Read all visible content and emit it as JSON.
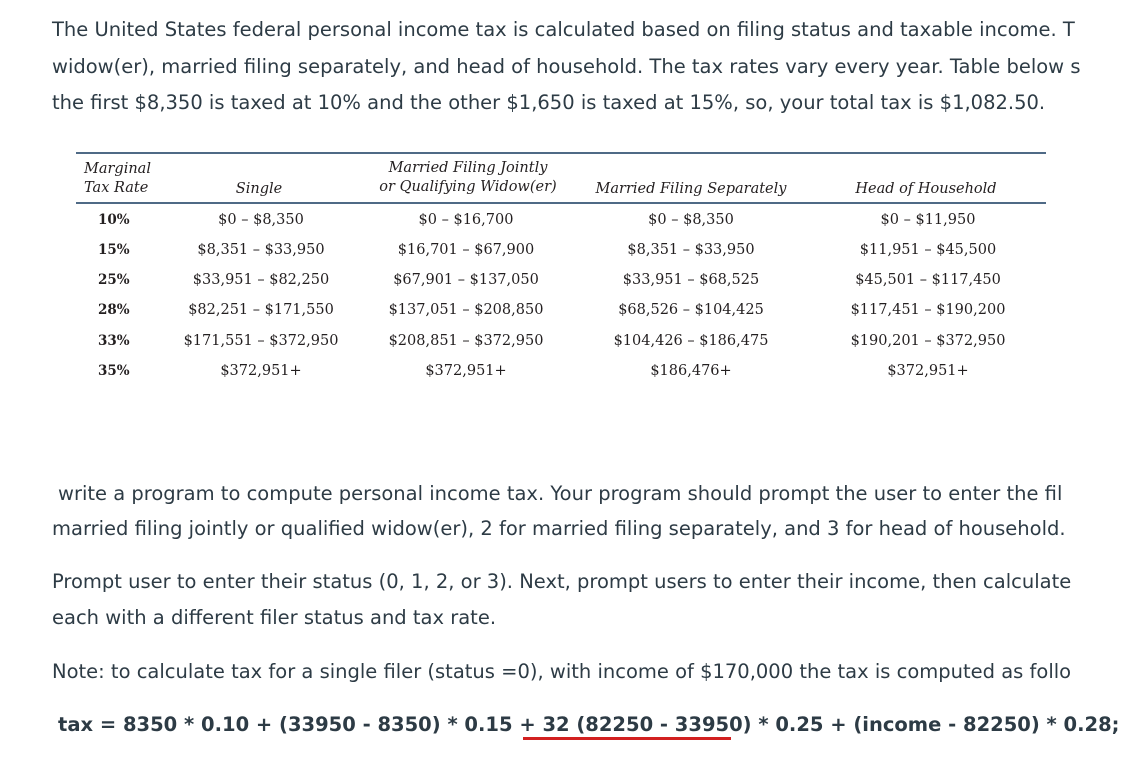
{
  "intro": {
    "line1": "The United States federal personal income tax is calculated based on filing status and taxable income. T",
    "line2": "widow(er), married filing separately, and head of household. The tax rates vary every year. Table below s",
    "line3": "the first $8,350 is taxed at 10% and the other $1,650 is taxed at 15%, so, your total tax is $1,082.50."
  },
  "table": {
    "headers": {
      "rate_line1": "Marginal",
      "rate_line2": "Tax Rate",
      "single": "Single",
      "mfj_line1": "Married Filing Jointly",
      "mfj_line2": "or Qualifying Widow(er)",
      "mfs": "Married Filing Separately",
      "hoh": "Head of Household"
    },
    "rows": [
      {
        "rate": "10%",
        "single": "$0 – $8,350",
        "mfj": "$0 – $16,700",
        "mfs": "$0 – $8,350",
        "hoh": "$0 – $11,950"
      },
      {
        "rate": "15%",
        "single": "$8,351 – $33,950",
        "mfj": "$16,701 – $67,900",
        "mfs": "$8,351 – $33,950",
        "hoh": "$11,951 – $45,500"
      },
      {
        "rate": "25%",
        "single": "$33,951 – $82,250",
        "mfj": "$67,901 – $137,050",
        "mfs": "$33,951 – $68,525",
        "hoh": "$45,501 – $117,450"
      },
      {
        "rate": "28%",
        "single": "$82,251 – $171,550",
        "mfj": "$137,051 – $208,850",
        "mfs": "$68,526 – $104,425",
        "hoh": "$117,451 – $190,200"
      },
      {
        "rate": "33%",
        "single": "$171,551 – $372,950",
        "mfj": "$208,851 – $372,950",
        "mfs": "$104,426 – $186,475",
        "hoh": "$190,201 – $372,950"
      },
      {
        "rate": "35%",
        "single": "$372,951+",
        "mfj": "$372,951+",
        "mfs": "$186,476+",
        "hoh": "$372,951+"
      }
    ]
  },
  "write": {
    "line1": "write a program to compute personal income tax. Your program should prompt the user to enter the fil",
    "line2": "married filing jointly or qualified widow(er), 2 for married filing separately, and 3 for head of household."
  },
  "prompt": {
    "line1": "Prompt user to enter their status (0, 1, 2, or 3). Next, prompt users to enter their income, then calculate",
    "line2": "each with a different filer status and tax rate."
  },
  "note": {
    "line1": "Note: to calculate tax for a single filer (status =0), with income of $170,000 the tax is computed as follo",
    "formula": "tax = 8350 * 0.10 + (33950 - 8350) * 0.15 + 32 (82250 - 33950) * 0.25 + (income - 82250) * 0.28;"
  },
  "colors": {
    "text": "#2d3b45",
    "table_rule": "#4f6a86",
    "underline": "#d22020"
  }
}
